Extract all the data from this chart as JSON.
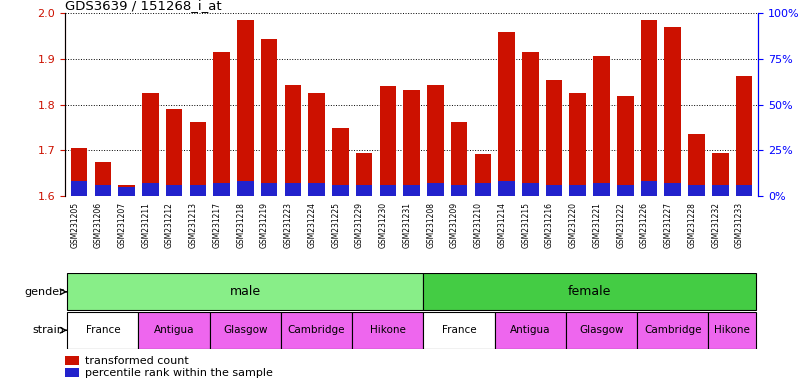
{
  "title": "GDS3639 / 151268_i_at",
  "samples": [
    "GSM231205",
    "GSM231206",
    "GSM231207",
    "GSM231211",
    "GSM231212",
    "GSM231213",
    "GSM231217",
    "GSM231218",
    "GSM231219",
    "GSM231223",
    "GSM231224",
    "GSM231225",
    "GSM231229",
    "GSM231230",
    "GSM231231",
    "GSM231208",
    "GSM231209",
    "GSM231210",
    "GSM231214",
    "GSM231215",
    "GSM231216",
    "GSM231220",
    "GSM231221",
    "GSM231222",
    "GSM231226",
    "GSM231227",
    "GSM231228",
    "GSM231232",
    "GSM231233"
  ],
  "transformed_count": [
    1.705,
    1.674,
    1.624,
    1.826,
    1.79,
    1.762,
    1.916,
    1.985,
    1.944,
    1.844,
    1.826,
    1.748,
    1.694,
    1.84,
    1.833,
    1.844,
    1.763,
    1.692,
    1.96,
    1.916,
    1.853,
    1.826,
    1.906,
    1.82,
    1.985,
    1.97,
    1.735,
    1.693,
    1.863
  ],
  "percentile_vals": [
    8,
    6,
    5,
    7,
    6,
    6,
    7,
    8,
    7,
    7,
    7,
    6,
    6,
    6,
    6,
    7,
    6,
    7,
    8,
    7,
    6,
    6,
    7,
    6,
    8,
    7,
    6,
    6,
    6
  ],
  "n_male": 15,
  "n_female": 14,
  "ylim_left": [
    1.6,
    2.0
  ],
  "ylim_right": [
    0,
    100
  ],
  "yticks_left": [
    1.6,
    1.7,
    1.8,
    1.9,
    2.0
  ],
  "yticks_right": [
    0,
    25,
    50,
    75,
    100
  ],
  "bar_color_red": "#cc1100",
  "bar_color_blue": "#2222cc",
  "gender_color_male": "#88ee88",
  "gender_color_female": "#44cc44",
  "strain_color_france": "#ffffff",
  "strain_color_other": "#ee66ee",
  "base_value": 1.6,
  "bar_width": 0.7,
  "strain_groups_male": [
    {
      "name": "France",
      "start": 0,
      "end": 3
    },
    {
      "name": "Antigua",
      "start": 3,
      "end": 6
    },
    {
      "name": "Glasgow",
      "start": 6,
      "end": 9
    },
    {
      "name": "Cambridge",
      "start": 9,
      "end": 12
    },
    {
      "name": "Hikone",
      "start": 12,
      "end": 15
    }
  ],
  "strain_groups_female": [
    {
      "name": "France",
      "start": 15,
      "end": 18
    },
    {
      "name": "Antigua",
      "start": 18,
      "end": 21
    },
    {
      "name": "Glasgow",
      "start": 21,
      "end": 24
    },
    {
      "name": "Cambridge",
      "start": 24,
      "end": 27
    },
    {
      "name": "Hikone",
      "start": 27,
      "end": 29
    }
  ]
}
